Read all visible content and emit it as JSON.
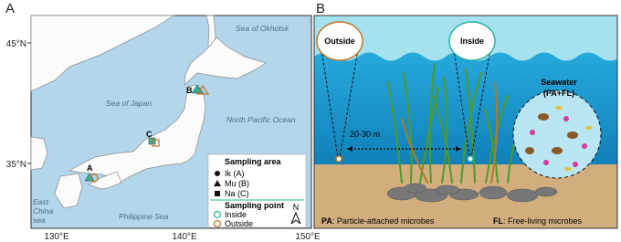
{
  "panel_a": {
    "label": "A",
    "seas": {
      "okhotsk": "Sea of Okhotsk",
      "japan": "Sea of Japan",
      "pacific": "North Pacific Ocean",
      "east_china": [
        "East",
        "China",
        "sea"
      ],
      "philippine": "Philippine Sea"
    },
    "sites": [
      "A",
      "B",
      "C"
    ],
    "legend": {
      "area_title": "Sampling area",
      "areas": [
        "Ik (A)",
        "Mu (B)",
        "Na (C)"
      ],
      "point_title": "Sampling point",
      "points": [
        "Inside",
        "Outside"
      ]
    },
    "north": "N",
    "lat_ticks": [
      "45°N",
      "35°N"
    ],
    "lon_ticks": [
      "130°E",
      "140°E",
      "150°E"
    ]
  },
  "panel_b": {
    "label": "B",
    "outside": "Outside",
    "inside": "Inside",
    "seawater": [
      "Seawater",
      "(PA+FL)"
    ],
    "distance": "20-30 m",
    "footer": {
      "pa_abbr": "PA",
      "pa_text": ": Particle-attached microbes",
      "fl_abbr": "FL",
      "fl_text": ": Free-living microbes"
    }
  }
}
